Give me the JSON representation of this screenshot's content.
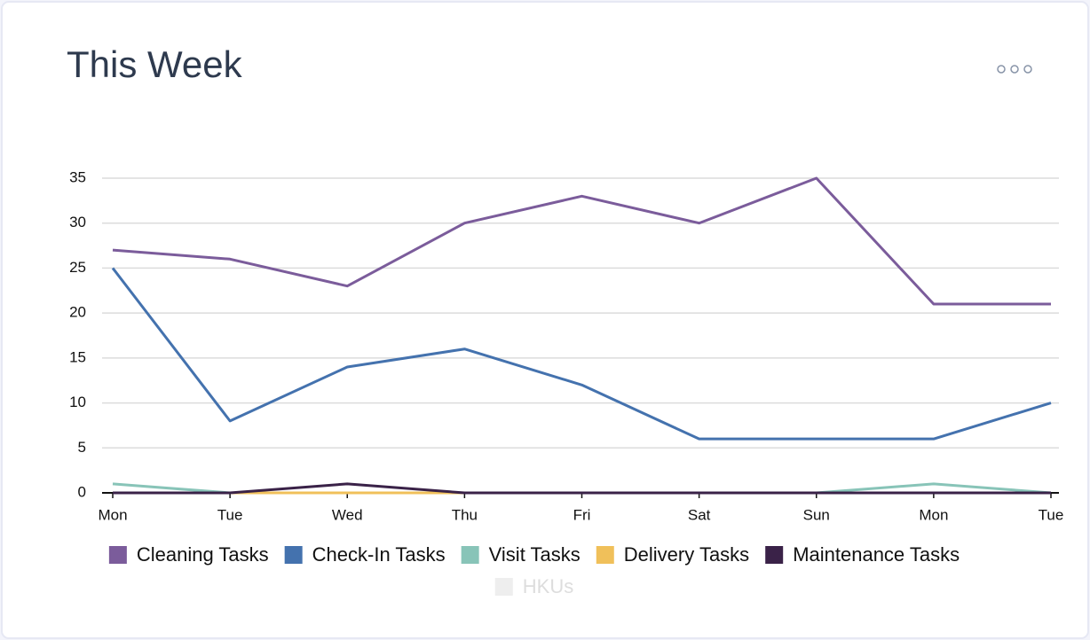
{
  "chart_data": {
    "type": "line",
    "title": "This Week",
    "categories": [
      "Mon",
      "Tue",
      "Wed",
      "Thu",
      "Fri",
      "Sat",
      "Sun",
      "Mon",
      "Tue"
    ],
    "series": [
      {
        "name": "Cleaning Tasks",
        "color": "#7b5c9b",
        "values": [
          27,
          26,
          23,
          30,
          33,
          30,
          35,
          21,
          21
        ]
      },
      {
        "name": "Check-In Tasks",
        "color": "#4472ae",
        "values": [
          25,
          8,
          14,
          16,
          12,
          6,
          6,
          6,
          10
        ]
      },
      {
        "name": "Visit Tasks",
        "color": "#88c4b8",
        "values": [
          1,
          0,
          0,
          0,
          0,
          0,
          0,
          1,
          0
        ]
      },
      {
        "name": "Delivery Tasks",
        "color": "#f0c05a",
        "values": [
          0,
          0,
          0,
          0,
          0,
          0,
          0,
          0,
          0
        ]
      },
      {
        "name": "Maintenance Tasks",
        "color": "#3a2248",
        "values": [
          0,
          0,
          1,
          0,
          0,
          0,
          0,
          0,
          0
        ]
      },
      {
        "name": "HKUs",
        "color": "#eeeeee",
        "hidden": true,
        "values": [
          null,
          null,
          null,
          null,
          null,
          null,
          null,
          null,
          null
        ]
      }
    ],
    "ylim": [
      0,
      35
    ],
    "yticks": [
      0,
      5,
      10,
      15,
      20,
      25,
      30,
      35
    ],
    "grid": true
  }
}
